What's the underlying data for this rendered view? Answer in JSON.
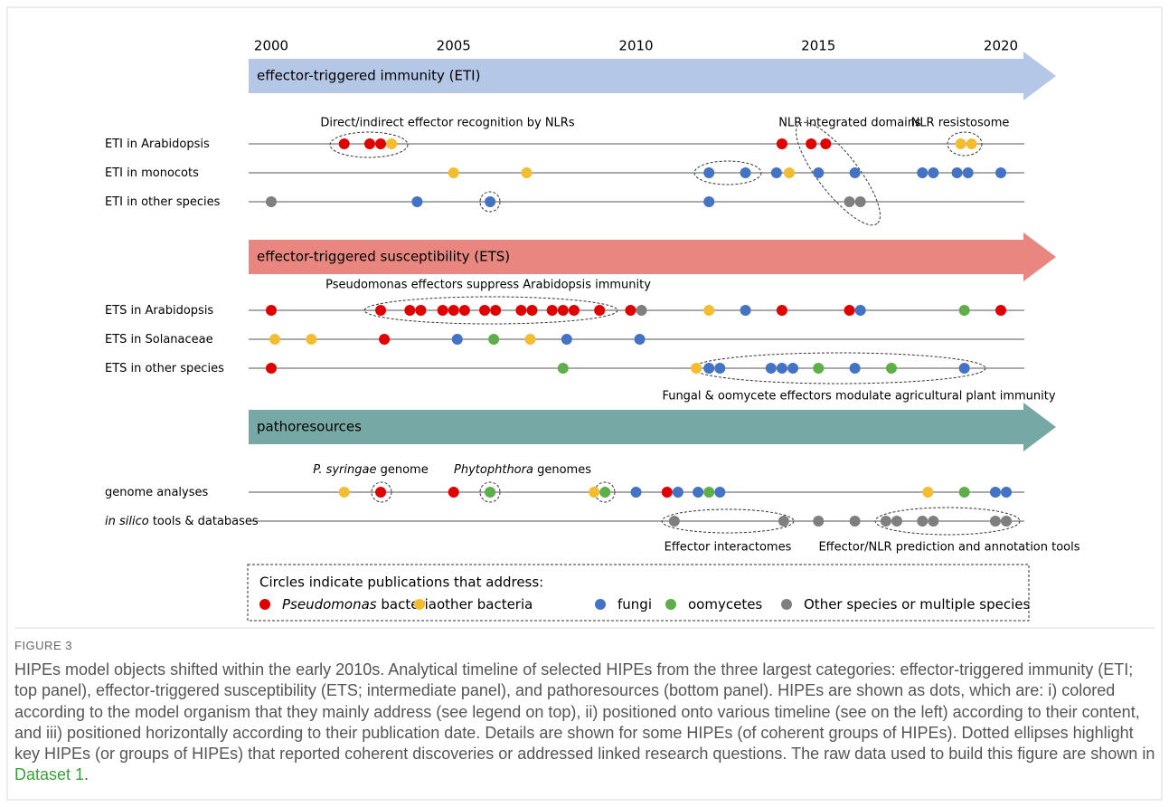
{
  "axis": {
    "ticks": [
      2000,
      2005,
      2010,
      2015,
      2020
    ]
  },
  "panels": [
    {
      "title": "effector-triggered immunity (ETI)",
      "color": "#b4c7e7",
      "rows": [
        {
          "label": {
            "text": "ETI in Arabidopsis"
          },
          "dots": [
            {
              "year": 2002.0,
              "group": 0
            },
            {
              "year": 2002.7,
              "group": 0
            },
            {
              "year": 2003.0,
              "group": 0
            },
            {
              "year": 2003.3,
              "group": 1
            },
            {
              "year": 2014.0,
              "group": 0
            },
            {
              "year": 2014.8,
              "group": 0
            },
            {
              "year": 2015.2,
              "group": 0
            },
            {
              "year": 2018.9,
              "group": 1
            },
            {
              "year": 2019.2,
              "group": 1
            }
          ]
        },
        {
          "label": {
            "text": "ETI in monocots"
          },
          "dots": [
            {
              "year": 2005.0,
              "group": 1
            },
            {
              "year": 2007.0,
              "group": 1
            },
            {
              "year": 2012.0,
              "group": 2
            },
            {
              "year": 2013.0,
              "group": 2
            },
            {
              "year": 2013.85,
              "group": 2
            },
            {
              "year": 2014.2,
              "group": 1
            },
            {
              "year": 2015.0,
              "group": 2
            },
            {
              "year": 2016.0,
              "group": 2
            },
            {
              "year": 2017.85,
              "group": 2
            },
            {
              "year": 2018.15,
              "group": 2
            },
            {
              "year": 2018.8,
              "group": 2
            },
            {
              "year": 2019.1,
              "group": 2
            },
            {
              "year": 2020.0,
              "group": 2
            }
          ]
        },
        {
          "label": {
            "text": "ETI in other species"
          },
          "dots": [
            {
              "year": 2000.0,
              "group": 4
            },
            {
              "year": 2004.0,
              "group": 2
            },
            {
              "year": 2006.0,
              "group": 2
            },
            {
              "year": 2012.0,
              "group": 2
            },
            {
              "year": 2015.85,
              "group": 4
            },
            {
              "year": 2016.15,
              "group": 4
            }
          ]
        }
      ]
    },
    {
      "title": "effector-triggered susceptibility (ETS)",
      "color": "#e8867f",
      "rows": [
        {
          "label": {
            "text": "ETS in Arabidopsis"
          },
          "dots": [
            {
              "year": 2000.0,
              "group": 0
            },
            {
              "year": 2003.0,
              "group": 0
            },
            {
              "year": 2003.8,
              "group": 0
            },
            {
              "year": 2004.1,
              "group": 0
            },
            {
              "year": 2004.7,
              "group": 0
            },
            {
              "year": 2005.0,
              "group": 0
            },
            {
              "year": 2005.3,
              "group": 0
            },
            {
              "year": 2005.85,
              "group": 0
            },
            {
              "year": 2006.15,
              "group": 0
            },
            {
              "year": 2006.85,
              "group": 0
            },
            {
              "year": 2007.15,
              "group": 0
            },
            {
              "year": 2007.7,
              "group": 0
            },
            {
              "year": 2008.0,
              "group": 0
            },
            {
              "year": 2008.3,
              "group": 0
            },
            {
              "year": 2009.0,
              "group": 0
            },
            {
              "year": 2009.85,
              "group": 0
            },
            {
              "year": 2010.15,
              "group": 4
            },
            {
              "year": 2012.0,
              "group": 1
            },
            {
              "year": 2013.0,
              "group": 2
            },
            {
              "year": 2014.0,
              "group": 0
            },
            {
              "year": 2015.85,
              "group": 0
            },
            {
              "year": 2016.15,
              "group": 2
            },
            {
              "year": 2019.0,
              "group": 3
            },
            {
              "year": 2020.0,
              "group": 0
            }
          ]
        },
        {
          "label": {
            "text": "ETS in Solanaceae"
          },
          "dots": [
            {
              "year": 2000.1,
              "group": 1
            },
            {
              "year": 2001.1,
              "group": 1
            },
            {
              "year": 2003.1,
              "group": 0
            },
            {
              "year": 2005.1,
              "group": 2
            },
            {
              "year": 2006.1,
              "group": 3
            },
            {
              "year": 2007.1,
              "group": 1
            },
            {
              "year": 2008.1,
              "group": 2
            },
            {
              "year": 2010.1,
              "group": 2
            }
          ]
        },
        {
          "label": {
            "text": "ETS in other species"
          },
          "dots": [
            {
              "year": 2000.0,
              "group": 0
            },
            {
              "year": 2008.0,
              "group": 3
            },
            {
              "year": 2011.65,
              "group": 1
            },
            {
              "year": 2012.0,
              "group": 2
            },
            {
              "year": 2012.3,
              "group": 2
            },
            {
              "year": 2013.7,
              "group": 2
            },
            {
              "year": 2014.0,
              "group": 2
            },
            {
              "year": 2014.3,
              "group": 2
            },
            {
              "year": 2015.0,
              "group": 3
            },
            {
              "year": 2016.0,
              "group": 2
            },
            {
              "year": 2017.0,
              "group": 3
            },
            {
              "year": 2019.0,
              "group": 2
            }
          ]
        }
      ]
    },
    {
      "title": "pathoresources",
      "color": "#76a9a6",
      "rows": [
        {
          "label": {
            "text": "genome analyses"
          },
          "dots": [
            {
              "year": 2002.0,
              "group": 1
            },
            {
              "year": 2003.0,
              "group": 0
            },
            {
              "year": 2005.0,
              "group": 0
            },
            {
              "year": 2006.0,
              "group": 3
            },
            {
              "year": 2008.85,
              "group": 1
            },
            {
              "year": 2009.15,
              "group": 3
            },
            {
              "year": 2010.0,
              "group": 2
            },
            {
              "year": 2010.85,
              "group": 0
            },
            {
              "year": 2011.15,
              "group": 2
            },
            {
              "year": 2011.7,
              "group": 2
            },
            {
              "year": 2012.0,
              "group": 3
            },
            {
              "year": 2012.3,
              "group": 2
            },
            {
              "year": 2018.0,
              "group": 1
            },
            {
              "year": 2019.0,
              "group": 3
            },
            {
              "year": 2019.85,
              "group": 2
            },
            {
              "year": 2020.15,
              "group": 2
            }
          ]
        },
        {
          "label": {
            "italic": "in silico",
            "text": " tools & databases"
          },
          "dots": [
            {
              "year": 2011.05,
              "group": 4
            },
            {
              "year": 2014.05,
              "group": 4
            },
            {
              "year": 2015.0,
              "group": 4
            },
            {
              "year": 2016.0,
              "group": 4
            },
            {
              "year": 2016.85,
              "group": 4
            },
            {
              "year": 2017.15,
              "group": 4
            },
            {
              "year": 2017.85,
              "group": 4
            },
            {
              "year": 2018.15,
              "group": 4
            },
            {
              "year": 2019.85,
              "group": 4
            },
            {
              "year": 2020.15,
              "group": 4
            }
          ]
        }
      ]
    }
  ],
  "annotations": {
    "eti_recognition": "Direct/indirect effector recognition by NLRs",
    "nlr_domains": "NLR integrated domains",
    "nlr_resistosome": "NLR resistosome",
    "ets_pseudomonas": "Pseudomonas effectors suppress Arabidopsis immunity",
    "ets_fungal": "Fungal & oomycete effectors modulate agricultural plant immunity",
    "psyringae": {
      "italic": "P. syringae",
      "text": " genome"
    },
    "phytophthora": {
      "italic": "Phytophthora",
      "text": " genomes"
    },
    "interactomes": "Effector interactomes",
    "prediction_tools": "Effector/NLR prediction and annotation tools"
  },
  "legend": {
    "title": "Circles indicate publications that address:",
    "groups": [
      {
        "italic": "Pseudomonas",
        "text": " bacteria",
        "color": "#e00000"
      },
      {
        "text": "other bacteria",
        "color": "#f4bd2f"
      },
      {
        "text": "fungi",
        "color": "#4472c4"
      },
      {
        "text": "oomycetes",
        "color": "#5eae4a"
      },
      {
        "text": "Other species or multiple species",
        "color": "#7f7f7f"
      }
    ]
  },
  "caption": {
    "label": "FIGURE 3",
    "text": "HIPEs model objects shifted within the early 2010s. Analytical timeline of selected HIPEs from the three largest categories: effector-triggered immunity (ETI; top panel), effector-triggered susceptibility (ETS; intermediate panel), and pathoresources (bottom panel). HIPEs are shown as dots, which are: i) colored according to the model organism that they mainly address (see legend on top), ii) positioned onto various timeline (see on the left) according to their content, and iii) positioned horizontally according to their publication date. Details are shown for some HIPEs (of coherent groups of HIPEs). Dotted ellipses highlight key HIPEs (or groups of HIPEs) that reported coherent discoveries or addressed linked research questions. The raw data used to build this figure are shown in ",
    "link": "Dataset 1",
    "end": "."
  }
}
